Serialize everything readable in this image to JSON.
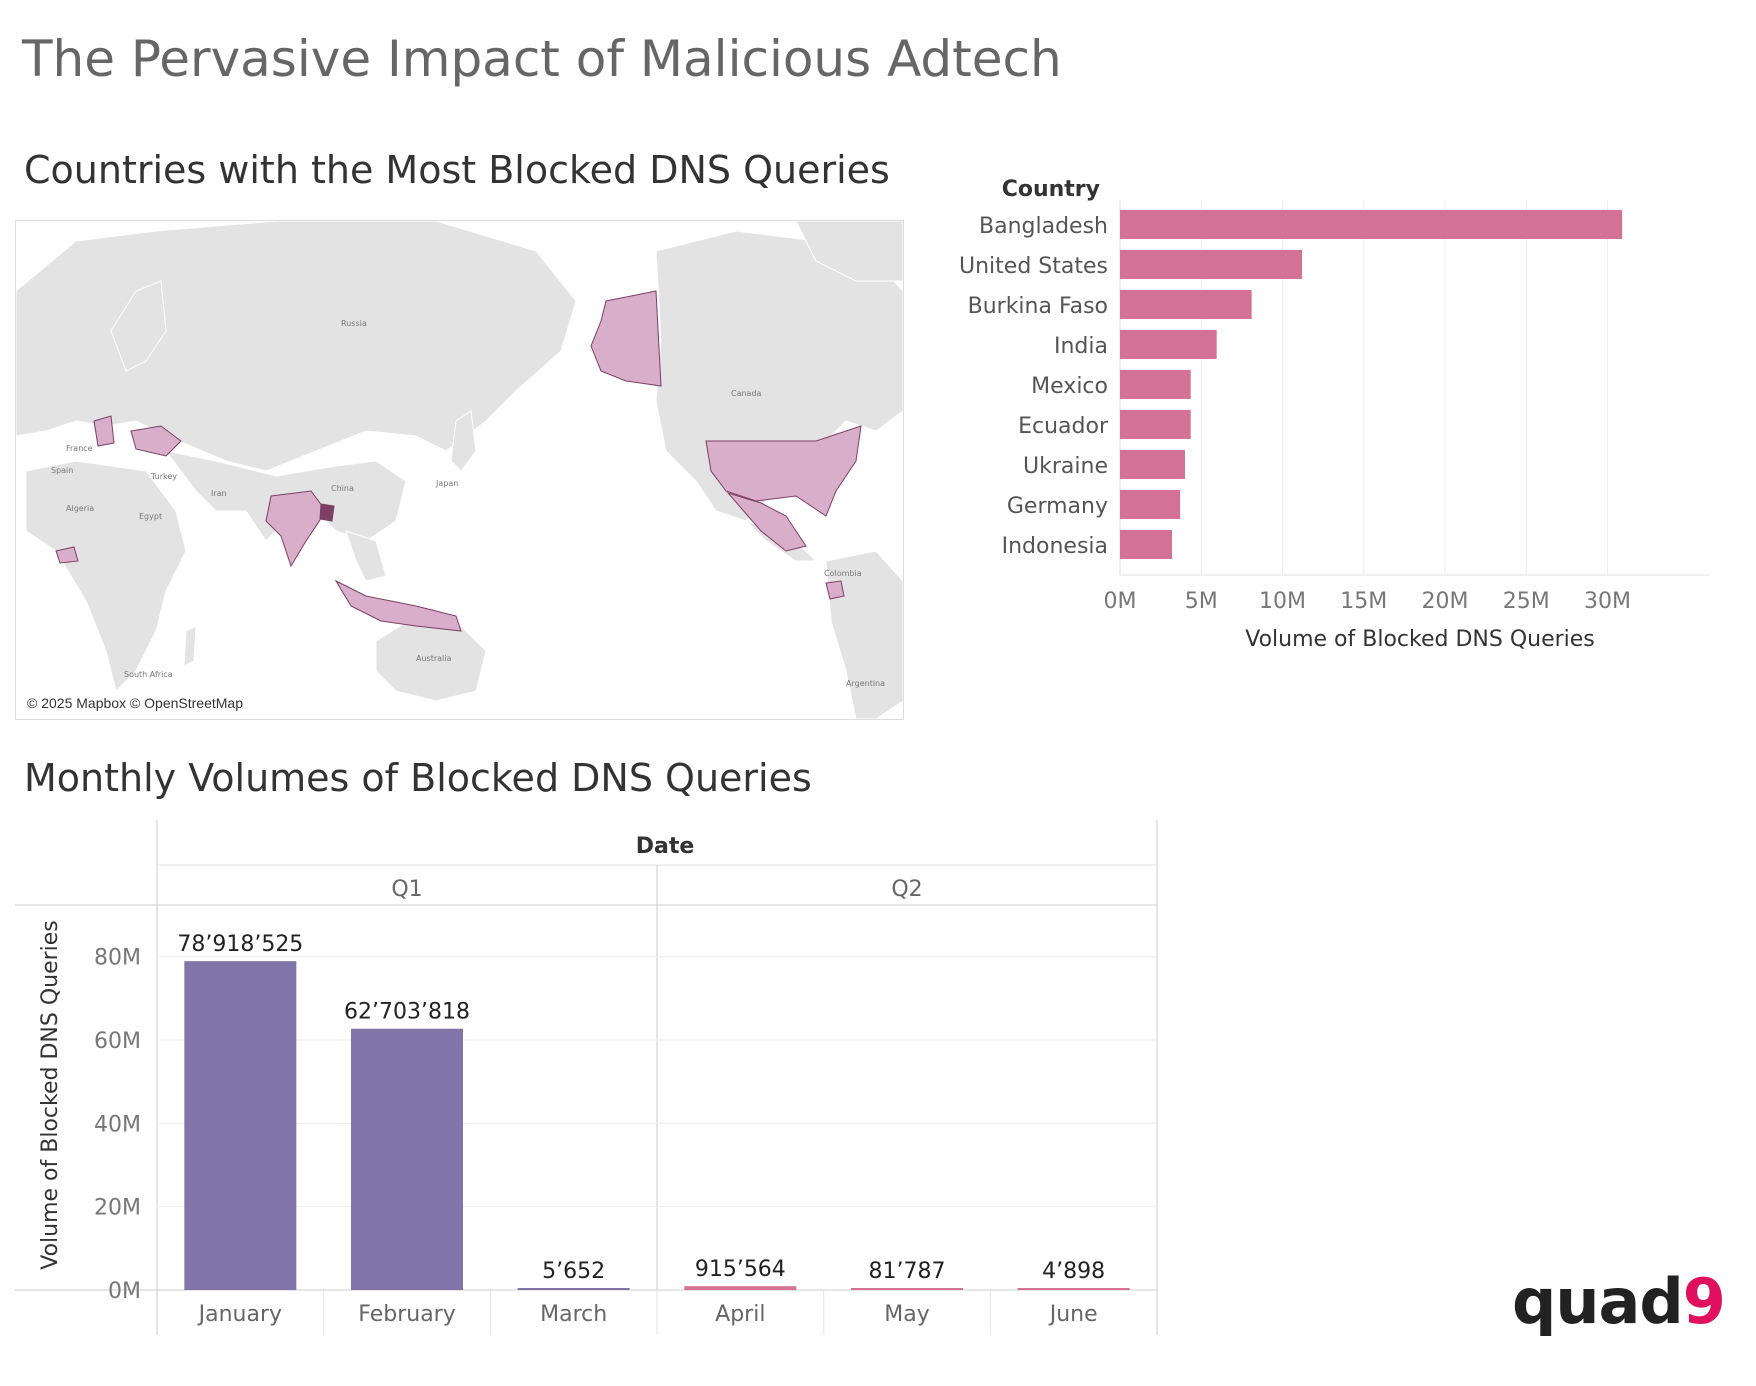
{
  "title": "The Pervasive Impact of Malicious Adtech",
  "map": {
    "title": "Countries with the Most Blocked DNS Queries",
    "credit": "© 2025 Mapbox © OpenStreetMap",
    "land_color": "#e3e3e3",
    "highlight_color": "#d9aeca",
    "highlight_dark": "#7d3f64",
    "labels": [
      "Russia",
      "Canada",
      "China",
      "Japan",
      "Iran",
      "Turkey",
      "France",
      "Spain",
      "Algeria",
      "Egypt",
      "Australia",
      "South Africa",
      "Colombia",
      "Argentina"
    ]
  },
  "chart_data": [
    {
      "type": "bar",
      "orientation": "horizontal",
      "category_header": "Country",
      "categories": [
        "Bangladesh",
        "United States",
        "Burkina Faso",
        "India",
        "Mexico",
        "Ecuador",
        "Ukraine",
        "Germany",
        "Indonesia"
      ],
      "values": [
        30900000,
        11200000,
        8100000,
        5950000,
        4350000,
        4350000,
        4000000,
        3700000,
        3200000
      ],
      "xlabel": "Volume of Blocked DNS Queries",
      "xticks": [
        "0M",
        "5M",
        "10M",
        "15M",
        "20M",
        "25M",
        "30M"
      ],
      "xlim": [
        0,
        32000000
      ],
      "color": "#d47295",
      "grid": true
    },
    {
      "type": "bar",
      "title": "Monthly Volumes of Blocked DNS Queries",
      "header": "Date",
      "groups": [
        {
          "label": "Q1",
          "months": [
            "January",
            "February",
            "March"
          ]
        },
        {
          "label": "Q2",
          "months": [
            "April",
            "May",
            "June"
          ]
        }
      ],
      "categories": [
        "January",
        "February",
        "March",
        "April",
        "May",
        "June"
      ],
      "values": [
        78918525,
        62703818,
        5652,
        915564,
        81787,
        4898
      ],
      "data_labels": [
        "78’918’525",
        "62’703’818",
        "5’652",
        "915’564",
        "81’787",
        "4’898"
      ],
      "colors": [
        "#8074a8",
        "#8074a8",
        "#8074a8",
        "#d47295",
        "#d47295",
        "#d47295"
      ],
      "ylabel": "Volume of Blocked DNS Queries",
      "yticks": [
        "0M",
        "20M",
        "40M",
        "60M",
        "80M"
      ],
      "ylim": [
        0,
        90000000
      ],
      "grid": true
    }
  ],
  "logo": {
    "text": "quad",
    "accent": "9"
  }
}
